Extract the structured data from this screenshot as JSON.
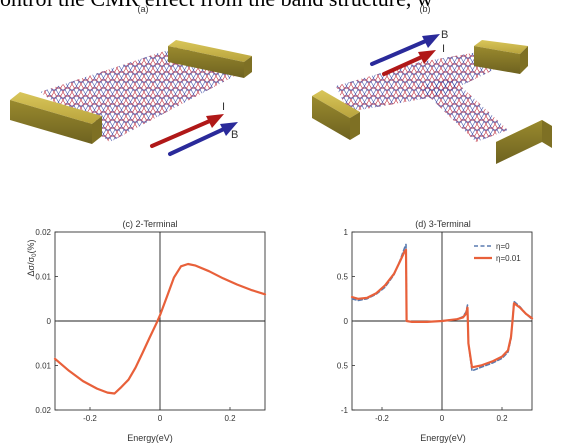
{
  "header_fragment": "ontrol the CMR effect from the band structure, w",
  "panels": {
    "a": {
      "label": "(a)",
      "arrow_b": "B",
      "arrow_i": "I"
    },
    "b": {
      "label": "(b)",
      "arrow_b": "B",
      "arrow_i": "I"
    }
  },
  "colors": {
    "gold_bar": "#b8a33c",
    "lattice_red": "#c03040",
    "lattice_blue": "#3040a0",
    "arrow_red": "#c02020",
    "arrow_blue": "#2a2a9a",
    "curve_orange": "#e8603a",
    "curve_dashed": "#5a7bb0"
  },
  "chart_data": [
    {
      "type": "line",
      "title": "(c) 2-Terminal",
      "xlabel": "Energy(eV)",
      "ylabel": "Δσ/σ_0(%)",
      "xlim": [
        -0.3,
        0.3
      ],
      "ylim": [
        -0.02,
        0.02
      ],
      "xticks": [
        -0.2,
        0,
        0.2
      ],
      "xtick_labels": [
        "-0.2",
        "0",
        "0.2"
      ],
      "yticks": [
        0.02,
        0.01,
        0,
        -0.01,
        -0.02
      ],
      "ytick_labels": [
        "0.02",
        "0.01",
        "0",
        "0.01",
        "0.02"
      ],
      "series": [
        {
          "color": "#e8603a",
          "x": [
            -0.3,
            -0.26,
            -0.22,
            -0.18,
            -0.15,
            -0.13,
            -0.11,
            -0.09,
            -0.07,
            -0.05,
            -0.03,
            -0.01,
            0.0,
            0.02,
            0.04,
            0.06,
            0.08,
            0.1,
            0.14,
            0.18,
            0.22,
            0.26,
            0.3
          ],
          "y": [
            -0.0085,
            -0.0112,
            -0.0135,
            -0.0152,
            -0.0161,
            -0.0163,
            -0.0148,
            -0.0132,
            -0.0105,
            -0.0072,
            -0.0038,
            -0.0005,
            0.0013,
            0.0055,
            0.0098,
            0.0123,
            0.0128,
            0.0125,
            0.0112,
            0.0096,
            0.0082,
            0.007,
            0.006
          ]
        }
      ]
    },
    {
      "type": "line",
      "title": "(d) 3-Terminal",
      "xlabel": "Energy(eV)",
      "xlim": [
        -0.3,
        0.3
      ],
      "ylim": [
        -1,
        1
      ],
      "xticks": [
        -0.2,
        0,
        0.2
      ],
      "xtick_labels": [
        "-0.2",
        "0",
        "0.2"
      ],
      "yticks": [
        1,
        0.5,
        0,
        -0.5,
        -1
      ],
      "ytick_labels": [
        "1",
        "0.5",
        "0",
        "0.5",
        "-1"
      ],
      "legend_position": "top-right",
      "series": [
        {
          "name": "η=0",
          "color": "#5a7bb0",
          "dashed": true,
          "x": [
            -0.3,
            -0.28,
            -0.25,
            -0.22,
            -0.19,
            -0.16,
            -0.14,
            -0.125,
            -0.12,
            -0.118,
            -0.1,
            -0.05,
            0.0,
            0.05,
            0.07,
            0.08,
            0.085,
            0.088,
            0.1,
            0.13,
            0.17,
            0.2,
            0.22,
            0.23,
            0.235,
            0.24,
            0.26,
            0.28,
            0.3
          ],
          "y": [
            0.25,
            0.23,
            0.25,
            0.3,
            0.38,
            0.52,
            0.68,
            0.82,
            0.86,
            0.0,
            -0.01,
            -0.01,
            0.0,
            0.02,
            0.05,
            0.1,
            0.18,
            -0.25,
            -0.56,
            -0.52,
            -0.47,
            -0.42,
            -0.35,
            -0.2,
            0.0,
            0.22,
            0.16,
            0.08,
            0.02
          ]
        },
        {
          "name": "η=0.01",
          "color": "#e8603a",
          "dashed": false,
          "x": [
            -0.3,
            -0.28,
            -0.25,
            -0.22,
            -0.19,
            -0.16,
            -0.14,
            -0.125,
            -0.12,
            -0.118,
            -0.1,
            -0.05,
            0.0,
            0.05,
            0.07,
            0.08,
            0.085,
            0.088,
            0.1,
            0.13,
            0.17,
            0.2,
            0.22,
            0.23,
            0.235,
            0.24,
            0.26,
            0.28,
            0.3
          ],
          "y": [
            0.27,
            0.25,
            0.26,
            0.31,
            0.4,
            0.53,
            0.67,
            0.78,
            0.8,
            0.0,
            -0.01,
            -0.01,
            0.0,
            0.02,
            0.04,
            0.08,
            0.15,
            -0.25,
            -0.52,
            -0.5,
            -0.45,
            -0.4,
            -0.33,
            -0.18,
            0.0,
            0.2,
            0.15,
            0.08,
            0.03
          ]
        }
      ]
    }
  ]
}
